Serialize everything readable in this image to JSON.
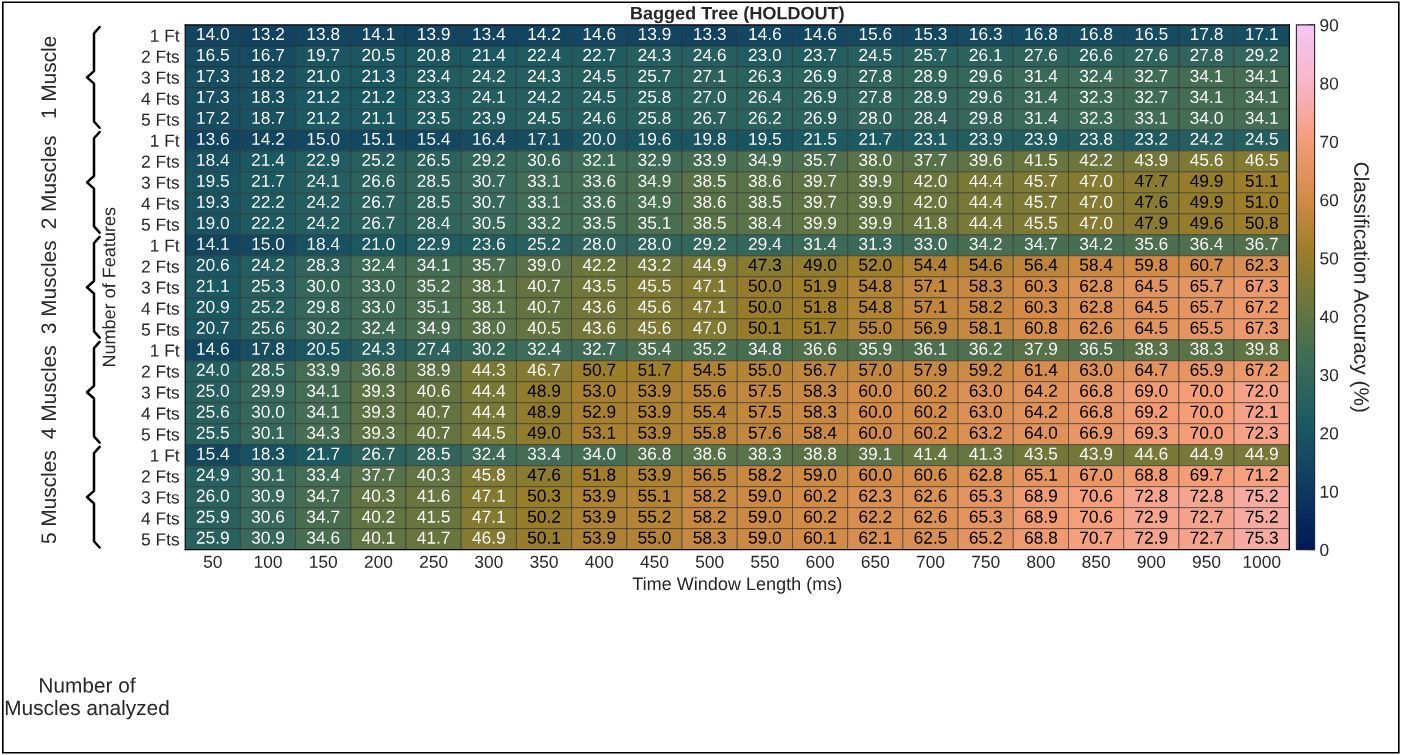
{
  "chart_data": {
    "type": "heatmap",
    "title": "Bagged Tree (HOLDOUT)",
    "xlabel": "Time Window Length (ms)",
    "ylabel": "Number of Features",
    "clabel": "Classification Accuracy (%)",
    "categories": [
      "50",
      "100",
      "150",
      "200",
      "250",
      "300",
      "350",
      "400",
      "450",
      "500",
      "550",
      "600",
      "650",
      "700",
      "750",
      "800",
      "850",
      "900",
      "950",
      "1000"
    ],
    "y_categories": [
      "1 Ft",
      "2 Fts",
      "3 Fts",
      "4 Fts",
      "5 Fts",
      "1 Ft",
      "2 Fts",
      "3 Fts",
      "4 Fts",
      "5 Fts",
      "1 Ft",
      "2 Fts",
      "3 Fts",
      "4 Fts",
      "5 Fts",
      "1 Ft",
      "2 Fts",
      "3 Fts",
      "4 Fts",
      "5 Fts",
      "1 Ft",
      "2 Fts",
      "3 Fts",
      "4 Fts",
      "5 Fts"
    ],
    "cells": [
      [
        14.0,
        13.2,
        13.8,
        14.1,
        13.9,
        13.4,
        14.2,
        14.6,
        13.9,
        13.3,
        14.6,
        14.6,
        15.6,
        15.3,
        16.3,
        16.8,
        16.8,
        16.5,
        17.8,
        17.1
      ],
      [
        16.5,
        16.7,
        19.7,
        20.5,
        20.8,
        21.4,
        22.4,
        22.7,
        24.3,
        24.6,
        23.0,
        23.7,
        24.5,
        25.7,
        26.1,
        27.6,
        26.6,
        27.6,
        27.8,
        29.2
      ],
      [
        17.3,
        18.2,
        21.0,
        21.3,
        23.4,
        24.2,
        24.3,
        24.5,
        25.7,
        27.1,
        26.3,
        26.9,
        27.8,
        28.9,
        29.6,
        31.4,
        32.4,
        32.7,
        34.1,
        34.1
      ],
      [
        17.3,
        18.3,
        21.2,
        21.2,
        23.3,
        24.1,
        24.2,
        24.5,
        25.8,
        27.0,
        26.4,
        26.9,
        27.8,
        28.9,
        29.6,
        31.4,
        32.3,
        32.7,
        34.1,
        34.1
      ],
      [
        17.2,
        18.7,
        21.2,
        21.1,
        23.5,
        23.9,
        24.5,
        24.6,
        25.8,
        26.7,
        26.2,
        26.9,
        28.0,
        28.4,
        29.8,
        31.4,
        32.3,
        33.1,
        34.0,
        34.1
      ],
      [
        13.6,
        14.2,
        15.0,
        15.1,
        15.4,
        16.4,
        17.1,
        20.0,
        19.6,
        19.8,
        19.5,
        21.5,
        21.7,
        23.1,
        23.9,
        23.9,
        23.8,
        23.2,
        24.2,
        24.5
      ],
      [
        18.4,
        21.4,
        22.9,
        25.2,
        26.5,
        29.2,
        30.6,
        32.1,
        32.9,
        33.9,
        34.9,
        35.7,
        38.0,
        37.7,
        39.6,
        41.5,
        42.2,
        43.9,
        45.6,
        46.5
      ],
      [
        19.5,
        21.7,
        24.1,
        26.6,
        28.5,
        30.7,
        33.1,
        33.6,
        34.9,
        38.5,
        38.6,
        39.7,
        39.9,
        42.0,
        44.4,
        45.7,
        47.0,
        47.7,
        49.9,
        51.1
      ],
      [
        19.3,
        22.2,
        24.2,
        26.7,
        28.5,
        30.7,
        33.1,
        33.6,
        34.9,
        38.6,
        38.5,
        39.7,
        39.9,
        42.0,
        44.4,
        45.7,
        47.0,
        47.6,
        49.9,
        51.0
      ],
      [
        19.0,
        22.2,
        24.2,
        26.7,
        28.4,
        30.5,
        33.2,
        33.5,
        35.1,
        38.5,
        38.4,
        39.9,
        39.9,
        41.8,
        44.4,
        45.5,
        47.0,
        47.9,
        49.6,
        50.8
      ],
      [
        14.1,
        15.0,
        18.4,
        21.0,
        22.9,
        23.6,
        25.2,
        28.0,
        28.0,
        29.2,
        29.4,
        31.4,
        31.3,
        33.0,
        34.2,
        34.7,
        34.2,
        35.6,
        36.4,
        36.7
      ],
      [
        20.6,
        24.2,
        28.3,
        32.4,
        34.1,
        35.7,
        39.0,
        42.2,
        43.2,
        44.9,
        47.3,
        49.0,
        52.0,
        54.4,
        54.6,
        56.4,
        58.4,
        59.8,
        60.7,
        62.3
      ],
      [
        21.1,
        25.3,
        30.0,
        33.0,
        35.2,
        38.1,
        40.7,
        43.5,
        45.5,
        47.1,
        50.0,
        51.9,
        54.8,
        57.1,
        58.3,
        60.3,
        62.8,
        64.5,
        65.7,
        67.3
      ],
      [
        20.9,
        25.2,
        29.8,
        33.0,
        35.1,
        38.1,
        40.7,
        43.6,
        45.6,
        47.1,
        50.0,
        51.8,
        54.8,
        57.1,
        58.2,
        60.3,
        62.8,
        64.5,
        65.7,
        67.2
      ],
      [
        20.7,
        25.6,
        30.2,
        32.4,
        34.9,
        38.0,
        40.5,
        43.6,
        45.6,
        47.0,
        50.1,
        51.7,
        55.0,
        56.9,
        58.1,
        60.8,
        62.6,
        64.5,
        65.5,
        67.3
      ],
      [
        14.6,
        17.8,
        20.5,
        24.3,
        27.4,
        30.2,
        32.4,
        32.7,
        35.4,
        35.2,
        34.8,
        36.6,
        35.9,
        36.1,
        36.2,
        37.9,
        36.5,
        38.3,
        38.3,
        39.8
      ],
      [
        24.0,
        28.5,
        33.9,
        36.8,
        38.9,
        44.3,
        46.7,
        50.7,
        51.7,
        54.5,
        55.0,
        56.7,
        57.0,
        57.9,
        59.2,
        61.4,
        63.0,
        64.7,
        65.9,
        67.2
      ],
      [
        25.0,
        29.9,
        34.1,
        39.3,
        40.6,
        44.4,
        48.9,
        53.0,
        53.9,
        55.6,
        57.5,
        58.3,
        60.0,
        60.2,
        63.0,
        64.2,
        66.8,
        69.0,
        70.0,
        72.0
      ],
      [
        25.6,
        30.0,
        34.1,
        39.3,
        40.7,
        44.4,
        48.9,
        52.9,
        53.9,
        55.4,
        57.5,
        58.3,
        60.0,
        60.2,
        63.0,
        64.2,
        66.8,
        69.2,
        70.0,
        72.1
      ],
      [
        25.5,
        30.1,
        34.3,
        39.3,
        40.7,
        44.5,
        49.0,
        53.1,
        53.9,
        55.8,
        57.6,
        58.4,
        60.0,
        60.2,
        63.2,
        64.0,
        66.9,
        69.3,
        70.0,
        72.3
      ],
      [
        15.4,
        18.3,
        21.7,
        26.7,
        28.5,
        32.4,
        33.4,
        34.0,
        36.8,
        38.6,
        38.3,
        38.8,
        39.1,
        41.4,
        41.3,
        43.5,
        43.9,
        44.6,
        44.9,
        44.9
      ],
      [
        24.9,
        30.1,
        33.4,
        37.7,
        40.3,
        45.8,
        47.6,
        51.8,
        53.9,
        56.5,
        58.2,
        59.0,
        60.0,
        60.6,
        62.8,
        65.1,
        67.0,
        68.8,
        69.7,
        71.2
      ],
      [
        26.0,
        30.9,
        34.7,
        40.3,
        41.6,
        47.1,
        50.3,
        53.9,
        55.1,
        58.2,
        59.0,
        60.2,
        62.3,
        62.6,
        65.3,
        68.9,
        70.6,
        72.8,
        72.8,
        75.2
      ],
      [
        25.9,
        30.6,
        34.7,
        40.2,
        41.5,
        47.1,
        50.2,
        53.9,
        55.2,
        58.2,
        59.0,
        60.2,
        62.2,
        62.6,
        65.3,
        68.9,
        70.6,
        72.9,
        72.7,
        75.2
      ],
      [
        25.9,
        30.9,
        34.6,
        40.1,
        41.7,
        46.9,
        50.1,
        53.9,
        55.0,
        58.3,
        59.0,
        60.1,
        62.1,
        62.5,
        65.2,
        68.8,
        70.7,
        72.9,
        72.7,
        75.3
      ]
    ],
    "cell_labels": [
      [
        "14.0",
        "13.2",
        "13.8",
        "14.1",
        "13.9",
        "13.4",
        "14.2",
        "14.6",
        "13.9",
        "13.3",
        "14.6",
        "14.6",
        "15.6",
        "15.3",
        "16.3",
        "16.8",
        "16.8",
        "16.5",
        "17.8",
        "17.1"
      ],
      [
        "16.5",
        "16.7",
        "19.7",
        "20.5",
        "20.8",
        "21.4",
        "22.4",
        "22.7",
        "24.3",
        "24.6",
        "23.0",
        "23.7",
        "24.5",
        "25.7",
        "26.1",
        "27.6",
        "26.6",
        "27.6",
        "27.8",
        "29.2"
      ],
      [
        "17.3",
        "18.2",
        "21.0",
        "21.3",
        "23.4",
        "24.2",
        "24.3",
        "24.5",
        "25.7",
        "27.1",
        "26.3",
        "26.9",
        "27.8",
        "28.9",
        "29.6",
        "31.4",
        "32.4",
        "32.7",
        "34.1",
        "34.1"
      ],
      [
        "17.3",
        "18.3",
        "21.2",
        "21.2",
        "23.3",
        "24.1",
        "24.2",
        "24.5",
        "25.8",
        "27.0",
        "26.4",
        "26.9",
        "27.8",
        "28.9",
        "29.6",
        "31.4",
        "32.3",
        "32.7",
        "34.1",
        "34.1"
      ],
      [
        "17.2",
        "18.7",
        "21.2",
        "21.1",
        "23.5",
        "23.9",
        "24.5",
        "24.6",
        "25.8",
        "26.7",
        "26.2",
        "26.9",
        "28.0",
        "28.4",
        "29.8",
        "31.4",
        "32.3",
        "33.1",
        "34.0",
        "34.1"
      ],
      [
        "13.6",
        "14.2",
        "15.0",
        "15.1",
        "15.4",
        "16.4",
        "17.1",
        "20.0",
        "19.6",
        "19.8",
        "19.5",
        "21.5",
        "21.7",
        "23.1",
        "23.9",
        "23.9",
        "23.8",
        "23.2",
        "24.2",
        "24.5"
      ],
      [
        "18.4",
        "21.4",
        "22.9",
        "25.2",
        "26.5",
        "29.2",
        "30.6",
        "32.1",
        "32.9",
        "33.9",
        "34.9",
        "35.7",
        "38.0",
        "37.7",
        "39.6",
        "41.5",
        "42.2",
        "43.9",
        "45.6",
        "46.5"
      ],
      [
        "19.5",
        "21.7",
        "24.1",
        "26.6",
        "28.5",
        "30.7",
        "33.1",
        "33.6",
        "34.9",
        "38.5",
        "38.6",
        "39.7",
        "39.9",
        "42.0",
        "44.4",
        "45.7",
        "47.0",
        "47.7",
        "49.9",
        "51.1"
      ],
      [
        "19.3",
        "22.2",
        "24.2",
        "26.7",
        "28.5",
        "30.7",
        "33.1",
        "33.6",
        "34.9",
        "38.6",
        "38.5",
        "39.7",
        "39.9",
        "42.0",
        "44.4",
        "45.7",
        "47.0",
        "47.6",
        "49.9",
        "51.0"
      ],
      [
        "19.0",
        "22.2",
        "24.2",
        "26.7",
        "28.4",
        "30.5",
        "33.2",
        "33.5",
        "35.1",
        "38.5",
        "38.4",
        "39.9",
        "39.9",
        "41.8",
        "44.4",
        "45.5",
        "47.0",
        "47.9",
        "49.6",
        "50.8"
      ],
      [
        "14.1",
        "15.0",
        "18.4",
        "21.0",
        "22.9",
        "23.6",
        "25.2",
        "28.0",
        "28.0",
        "29.2",
        "29.4",
        "31.4",
        "31.3",
        "33.0",
        "34.2",
        "34.7",
        "34.2",
        "35.6",
        "36.4",
        "36.7"
      ],
      [
        "20.6",
        "24.2",
        "28.3",
        "32.4",
        "34.1",
        "35.7",
        "39.0",
        "42.2",
        "43.2",
        "44.9",
        "47.3",
        "49.0",
        "52.0",
        "54.4",
        "54.6",
        "56.4",
        "58.4",
        "59.8",
        "60.7",
        "62.3"
      ],
      [
        "21.1",
        "25.3",
        "30.0",
        "33.0",
        "35.2",
        "38.1",
        "40.7",
        "43.5",
        "45.5",
        "47.1",
        "50.0",
        "51.9",
        "54.8",
        "57.1",
        "58.3",
        "60.3",
        "62.8",
        "64.5",
        "65.7",
        "67.3"
      ],
      [
        "20.9",
        "25.2",
        "29.8",
        "33.0",
        "35.1",
        "38.1",
        "40.7",
        "43.6",
        "45.6",
        "47.1",
        "50.0",
        "51.8",
        "54.8",
        "57.1",
        "58.2",
        "60.3",
        "62.8",
        "64.5",
        "65.7",
        "67.2"
      ],
      [
        "20.7",
        "25.6",
        "30.2",
        "32.4",
        "34.9",
        "38.0",
        "40.5",
        "43.6",
        "45.6",
        "47.0",
        "50.1",
        "51.7",
        "55.0",
        "56.9",
        "58.1",
        "60.8",
        "62.6",
        "64.5",
        "65.5",
        "67.3"
      ],
      [
        "14.6",
        "17.8",
        "20.5",
        "24.3",
        "27.4",
        "30.2",
        "32.4",
        "32.7",
        "35.4",
        "35.2",
        "34.8",
        "36.6",
        "35.9",
        "36.1",
        "36.2",
        "37.9",
        "36.5",
        "38.3",
        "38.3",
        "39.8"
      ],
      [
        "24.0",
        "28.5",
        "33.9",
        "36.8",
        "38.9",
        "44.3",
        "46.7",
        "50.7",
        "51.7",
        "54.5",
        "55.0",
        "56.7",
        "57.0",
        "57.9",
        "59.2",
        "61.4",
        "63.0",
        "64.7",
        "65.9",
        "67.2"
      ],
      [
        "25.0",
        "29.9",
        "34.1",
        "39.3",
        "40.6",
        "44.4",
        "48.9",
        "53.0",
        "53.9",
        "55.6",
        "57.5",
        "58.3",
        "60.0",
        "60.2",
        "63.0",
        "64.2",
        "66.8",
        "69.0",
        "70.0",
        "72.0"
      ],
      [
        "25.6",
        "30.0",
        "34.1",
        "39.3",
        "40.7",
        "44.4",
        "48.9",
        "52.9",
        "53.9",
        "55.4",
        "57.5",
        "58.3",
        "60.0",
        "60.2",
        "63.0",
        "64.2",
        "66.8",
        "69.2",
        "70.0",
        "72.1"
      ],
      [
        "25.5",
        "30.1",
        "34.3",
        "39.3",
        "40.7",
        "44.5",
        "49.0",
        "53.1",
        "53.9",
        "55.8",
        "57.6",
        "58.4",
        "60.0",
        "60.2",
        "63.2",
        "64.0",
        "66.9",
        "69.3",
        "70.0",
        "72.3"
      ],
      [
        "15.4",
        "18.3",
        "21.7",
        "26.7",
        "28.5",
        "32.4",
        "33.4",
        "34.0",
        "36.8",
        "38.6",
        "38.3",
        "38.8",
        "39.1",
        "41.4",
        "41.3",
        "43.5",
        "43.9",
        "44.6",
        "44.9",
        "44.9"
      ],
      [
        "24.9",
        "30.1",
        "33.4",
        "37.7",
        "40.3",
        "45.8",
        "47.6",
        "51.8",
        "53.9",
        "56.5",
        "58.2",
        "59.0",
        "60.0",
        "60.6",
        "62.8",
        "65.1",
        "67.0",
        "68.8",
        "69.7",
        "71.2"
      ],
      [
        "26.0",
        "30.9",
        "34.7",
        "40.3",
        "41.6",
        "47.1",
        "50.3",
        "53.9",
        "55.1",
        "58.2",
        "59.0",
        "60.2",
        "62.3",
        "62.6",
        "65.3",
        "68.9",
        "70.6",
        "72.8",
        "72.8",
        "75.2"
      ],
      [
        "25.9",
        "30.6",
        "34.7",
        "40.2",
        "41.5",
        "47.1",
        "50.2",
        "53.9",
        "55.2",
        "58.2",
        "59.0",
        "60.2",
        "62.2",
        "62.6",
        "65.3",
        "68.9",
        "70.6",
        "72.9",
        "72.7",
        "75.2"
      ],
      [
        "25.9",
        "30.9",
        "34.6",
        "40.1",
        "41.7",
        "46.9",
        "50.1",
        "53.9",
        "55.0",
        "58.3",
        "59.0",
        "60.1",
        "62.1",
        "62.5",
        "65.2",
        "68.8",
        "70.7",
        "72.9",
        "72.7",
        "75.3"
      ]
    ],
    "clim": [
      0,
      90
    ],
    "cticks": [
      0,
      10,
      20,
      30,
      40,
      50,
      60,
      70,
      80,
      90
    ],
    "data_labels": true,
    "annotations": [
      "1 Muscle",
      "2 Muscles",
      "3 Muscles",
      "4 Muscles",
      "5 Muscles",
      "Number of\nMuscles analyzed"
    ]
  }
}
